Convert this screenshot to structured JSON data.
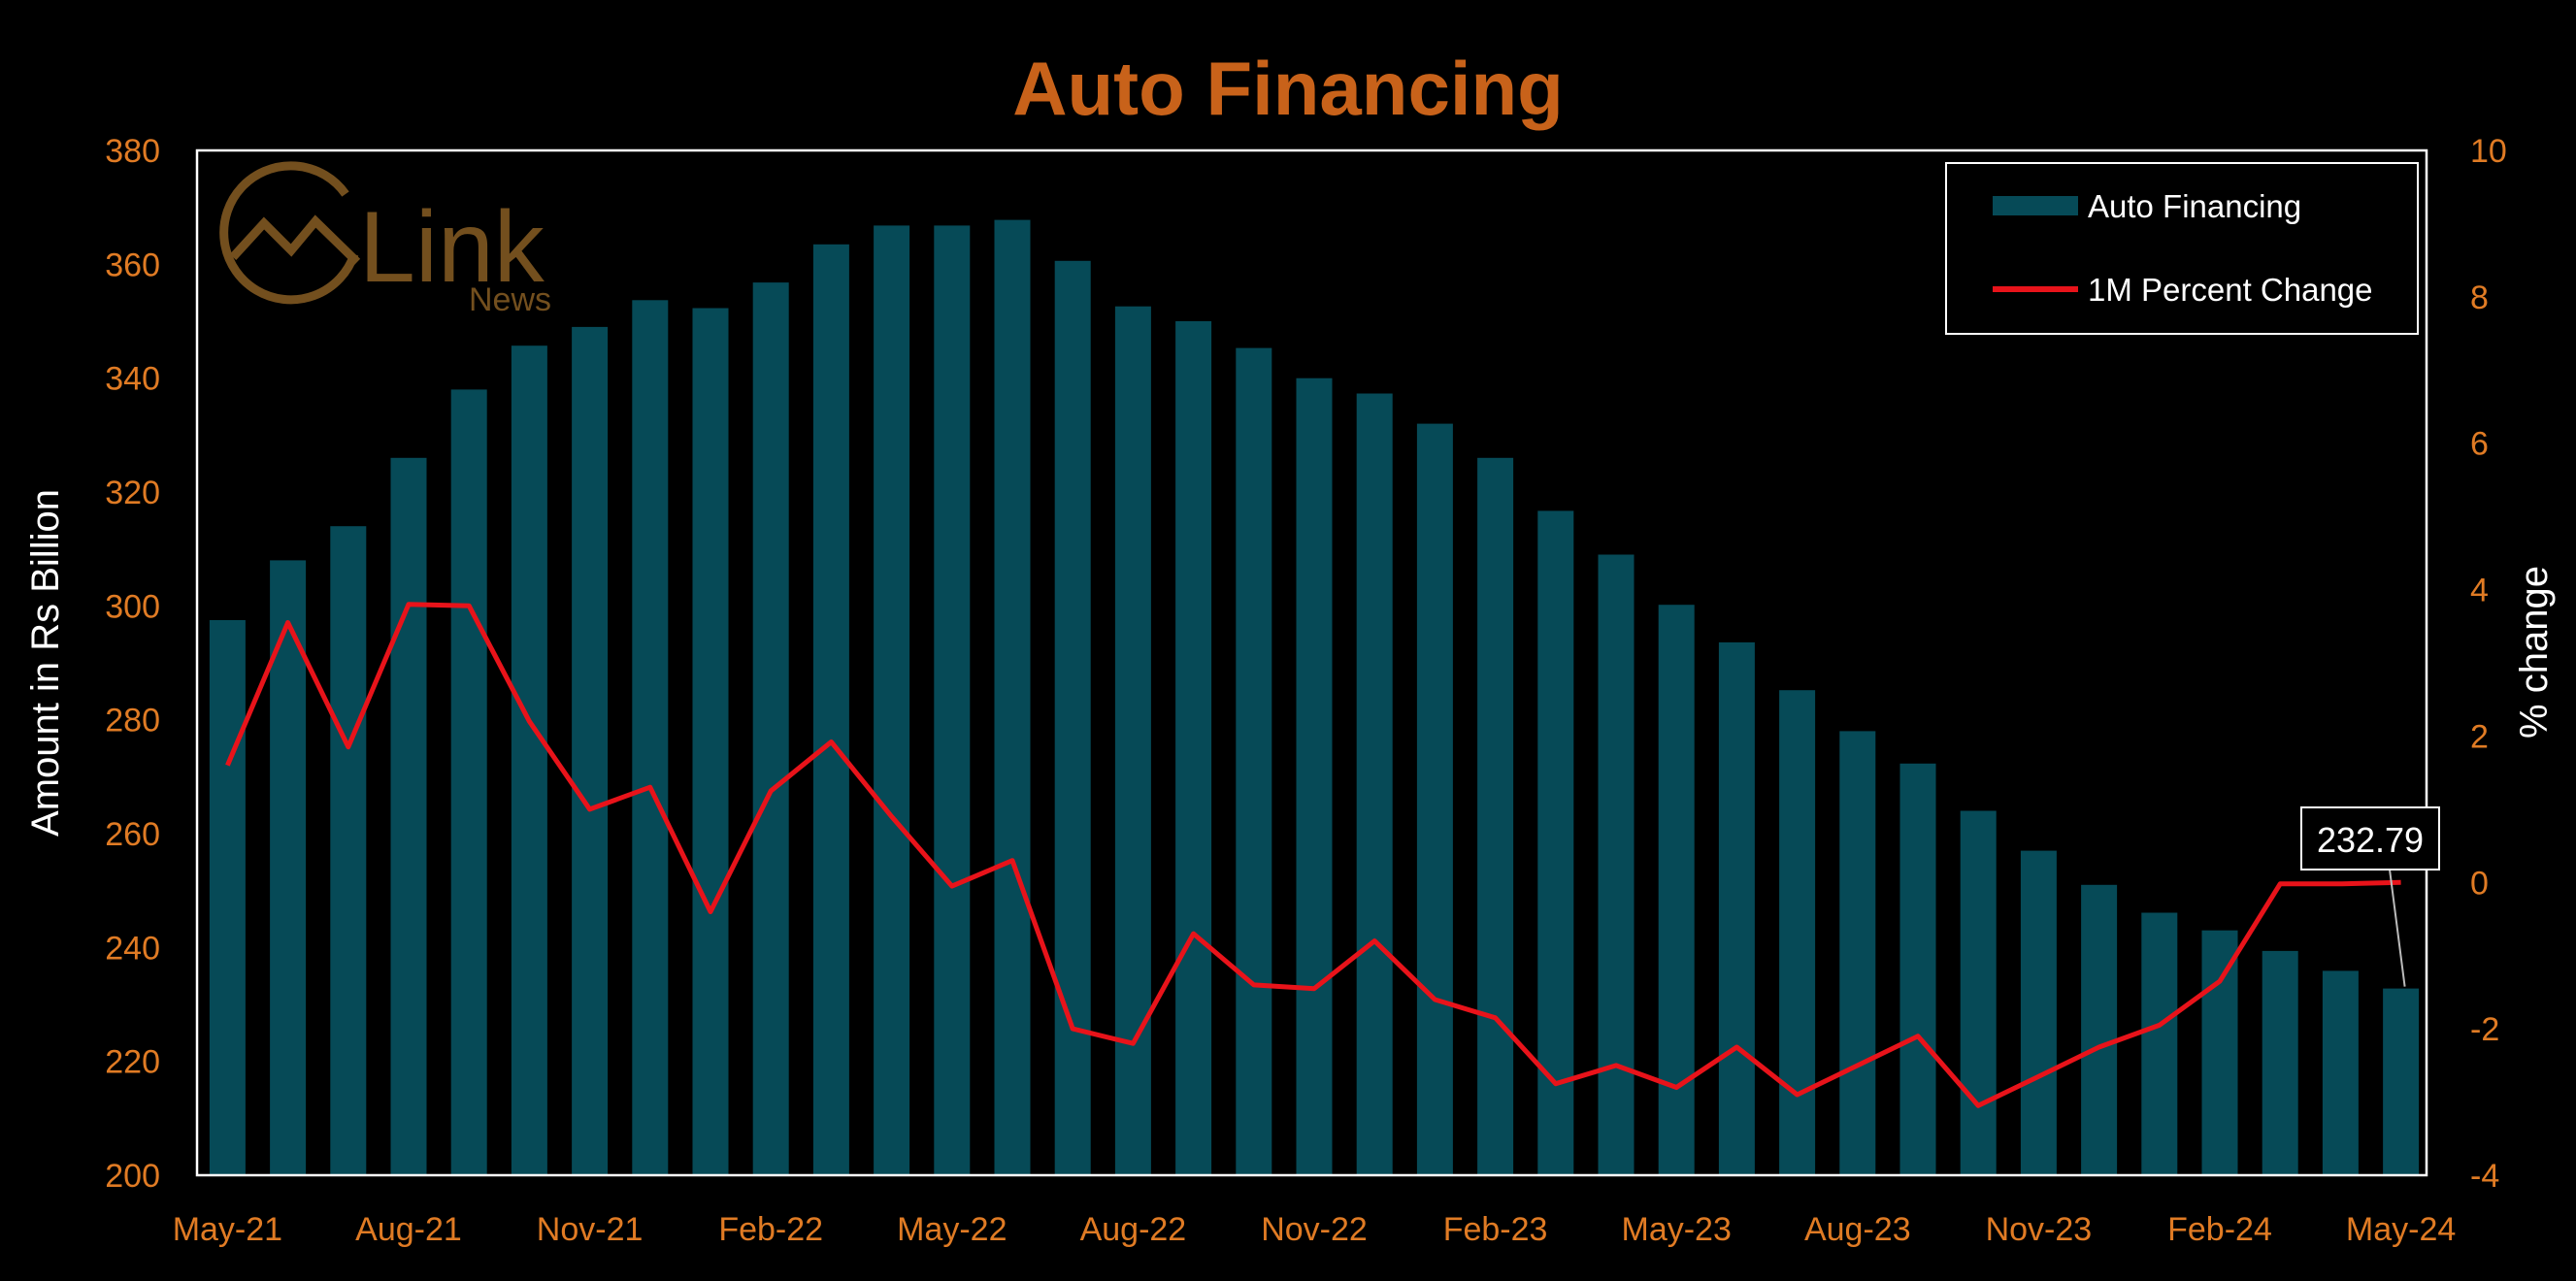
{
  "chart_data": {
    "type": "bar+line",
    "title": "Auto Financing",
    "ylabel_left": "Amount in Rs Billion",
    "ylabel_right": "% change",
    "ylim_left": [
      200,
      380
    ],
    "yticks_left": [
      200,
      220,
      240,
      260,
      280,
      300,
      320,
      340,
      360,
      380
    ],
    "ylim_right": [
      -4,
      10
    ],
    "yticks_right": [
      -4,
      -2,
      0,
      2,
      4,
      6,
      8,
      10
    ],
    "xtick_labels": [
      "May-21",
      "Aug-21",
      "Nov-21",
      "Feb-22",
      "May-22",
      "Aug-22",
      "Nov-22",
      "Feb-23",
      "May-23",
      "Aug-23",
      "Nov-23",
      "Feb-24",
      "May-24"
    ],
    "categories": [
      "May-21",
      "Jun-21",
      "Jul-21",
      "Aug-21",
      "Sep-21",
      "Oct-21",
      "Nov-21",
      "Dec-21",
      "Jan-22",
      "Feb-22",
      "Mar-22",
      "Apr-22",
      "May-22",
      "Jun-22",
      "Jul-22",
      "Aug-22",
      "Sep-22",
      "Oct-22",
      "Nov-22",
      "Dec-22",
      "Jan-23",
      "Feb-23",
      "Mar-23",
      "Apr-23",
      "May-23",
      "Jun-23",
      "Jul-23",
      "Aug-23",
      "Sep-23",
      "Oct-23",
      "Nov-23",
      "Dec-23",
      "Jan-24",
      "Feb-24",
      "Mar-24",
      "Apr-24",
      "May-24"
    ],
    "series": [
      {
        "name": "Auto Financing",
        "type": "bar",
        "axis": "left",
        "color": "#064A57",
        "values": [
          297.5,
          308,
          314,
          326,
          338,
          345.7,
          349,
          353.7,
          352.3,
          356.8,
          363.5,
          366.8,
          366.8,
          367.8,
          360.6,
          352.6,
          350,
          345.3,
          340,
          337.3,
          332,
          326,
          316.7,
          309,
          300.2,
          293.6,
          285.2,
          278,
          272.3,
          264,
          257,
          251,
          246.1,
          243,
          239.4,
          235.9,
          232.79
        ]
      },
      {
        "name": "1M Percent Change",
        "type": "line",
        "axis": "right",
        "color": "#E8131A",
        "values": [
          1.6,
          3.55,
          1.85,
          3.8,
          3.78,
          2.2,
          1.0,
          1.3,
          -0.4,
          1.25,
          1.92,
          0.9,
          -0.05,
          0.3,
          -2.0,
          -2.2,
          -0.7,
          -1.4,
          -1.45,
          -0.8,
          -1.6,
          -1.85,
          -2.75,
          -2.5,
          -2.8,
          -2.25,
          -2.9,
          -2.5,
          -2.1,
          -3.05,
          -2.65,
          -2.25,
          -1.95,
          -1.35,
          -0.02,
          -0.02,
          0.0
        ]
      }
    ],
    "callout": {
      "label": "232.79",
      "target_index": 36
    },
    "legend_position": "top-right",
    "grid": false
  },
  "logo": {
    "name": "Link",
    "sub": "News"
  },
  "colors": {
    "title": "#C8621A",
    "ticks": "#E07B24",
    "frame": "#FFFFFF",
    "background": "#000000"
  }
}
